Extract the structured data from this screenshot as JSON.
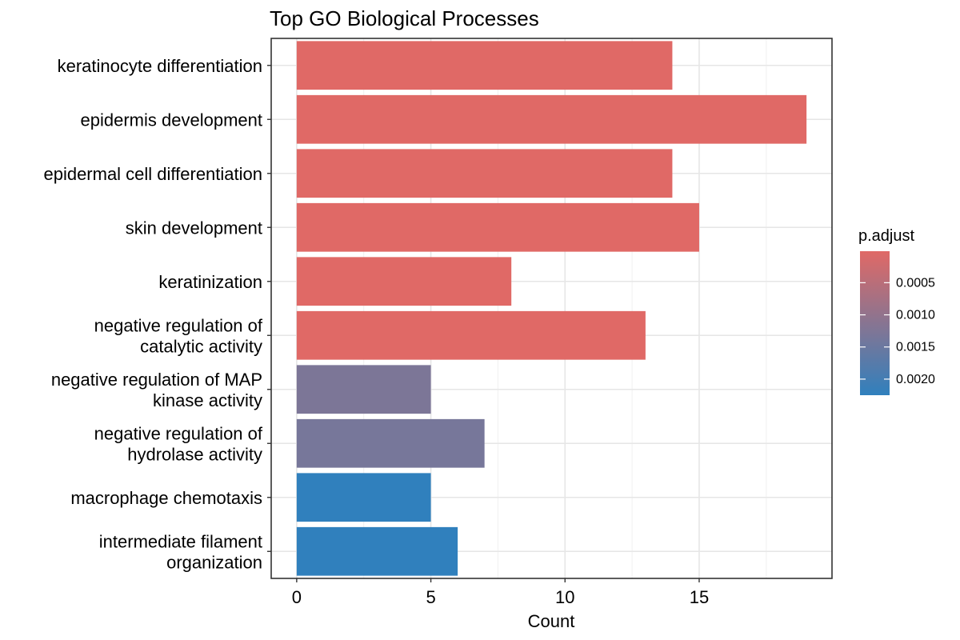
{
  "chart_data": {
    "type": "bar",
    "orientation": "horizontal",
    "title": "Top GO Biological Processes",
    "xlabel": "Count",
    "ylabel": "",
    "xlim": [
      -0.95,
      19.95
    ],
    "xticks": [
      0,
      5,
      10,
      15
    ],
    "grid": true,
    "legend_position": "right",
    "categories": [
      "keratinocyte differentiation",
      "epidermis development",
      "epidermal cell differentiation",
      "skin development",
      "keratinization",
      "negative regulation of catalytic activity",
      "negative regulation of MAP kinase activity",
      "negative regulation of hydrolase activity",
      "macrophage chemotaxis",
      "intermediate filament organization"
    ],
    "category_label_lines": [
      [
        "keratinocyte differentiation"
      ],
      [
        "epidermis development"
      ],
      [
        "epidermal cell differentiation"
      ],
      [
        "skin development"
      ],
      [
        "keratinization"
      ],
      [
        "negative regulation of",
        "catalytic activity"
      ],
      [
        "negative regulation of MAP",
        "kinase activity"
      ],
      [
        "negative regulation of",
        "hydrolase activity"
      ],
      [
        "macrophage chemotaxis"
      ],
      [
        "intermediate filament",
        "organization"
      ]
    ],
    "values": [
      14,
      19,
      14,
      15,
      8,
      13,
      5,
      7,
      5,
      6
    ],
    "p_adjust": [
      1e-05,
      1e-05,
      1e-05,
      1e-05,
      1e-05,
      1e-05,
      0.00128,
      0.00134,
      0.00225,
      0.00225
    ],
    "colorbar": {
      "title": "p.adjust",
      "min": 1e-05,
      "max": 0.00225,
      "low_color": "#e06966",
      "high_color": "#3080bd",
      "ticks": [
        0.0005,
        0.001,
        0.0015,
        0.002
      ],
      "tick_labels": [
        "0.0005",
        "0.0010",
        "0.0015",
        "0.0020"
      ]
    }
  }
}
